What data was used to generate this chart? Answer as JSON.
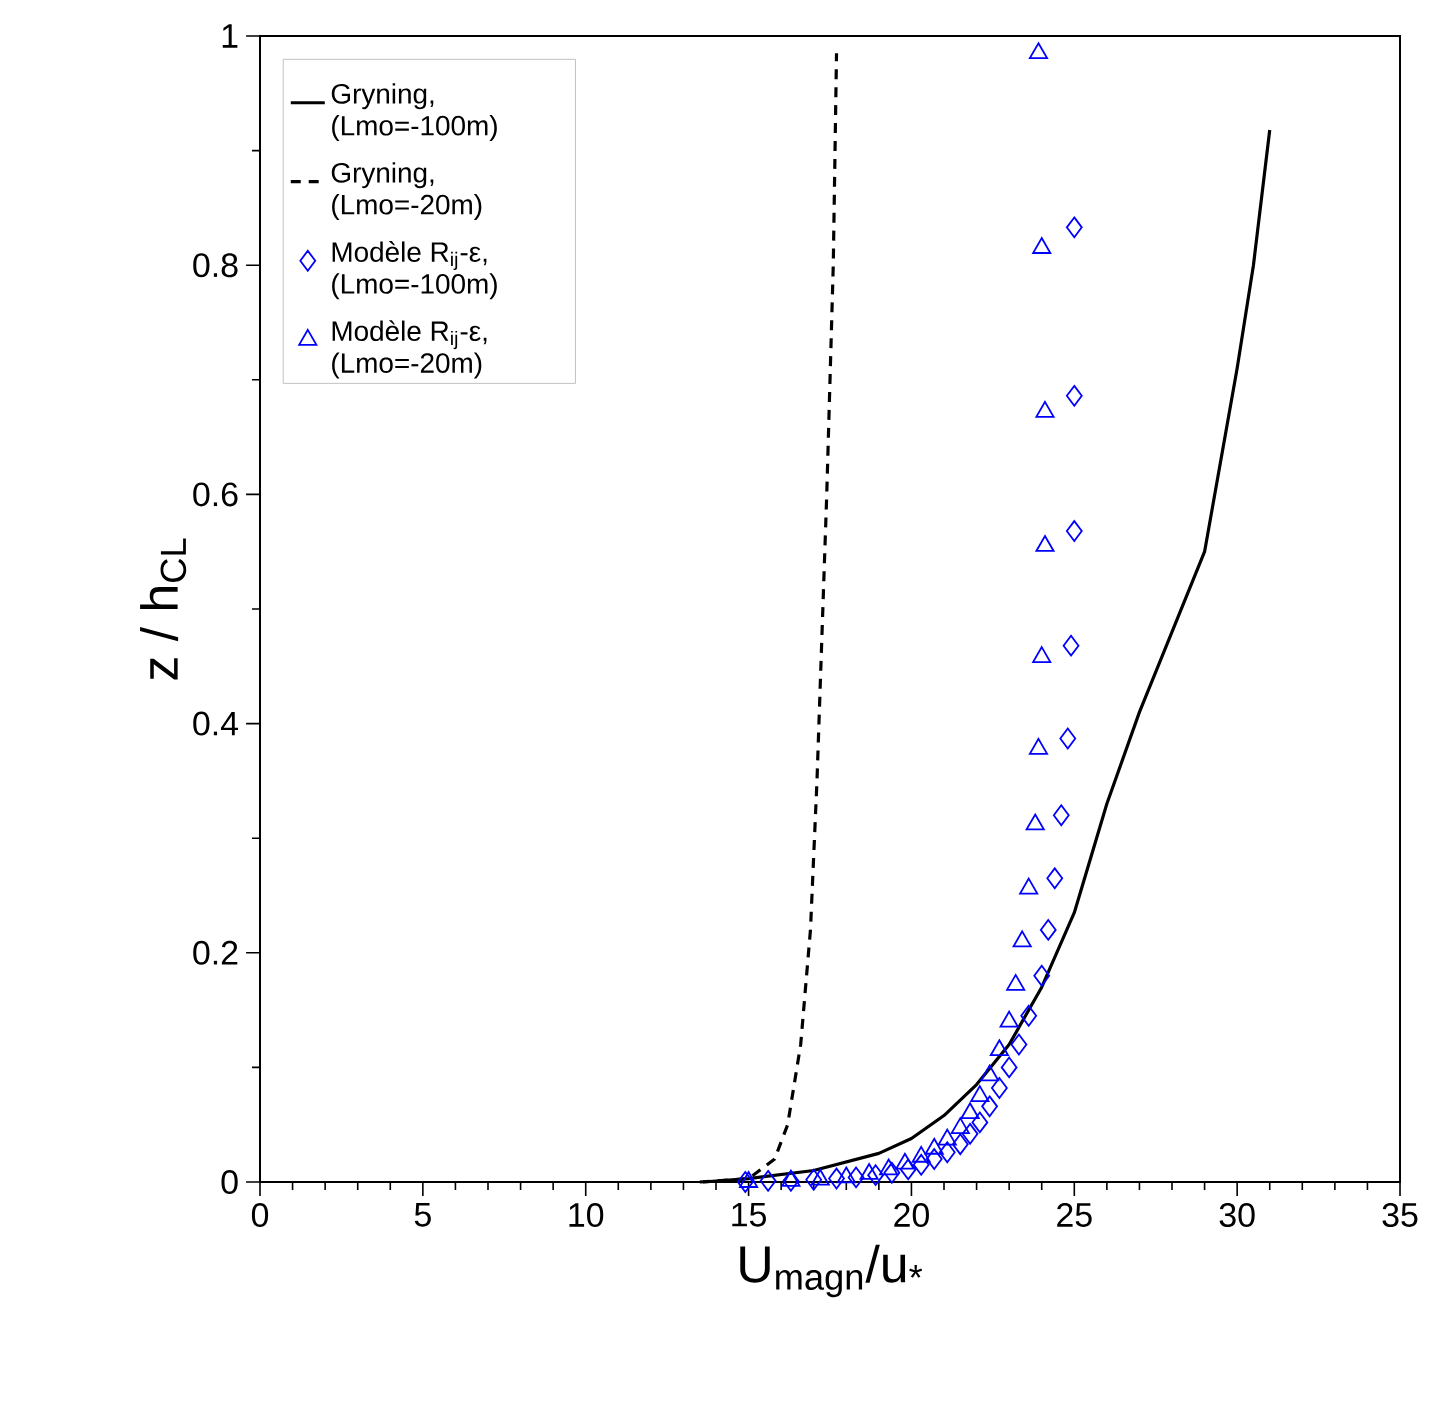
{
  "chart_data": {
    "type": "line",
    "xlabel": "U$_{magn}$/u$_{*}$",
    "ylabel": "z / h$_{CL}$",
    "xlim": [
      0,
      35
    ],
    "ylim": [
      0,
      1
    ],
    "xticks": [
      0,
      5,
      10,
      15,
      20,
      25,
      30,
      35
    ],
    "yticks": [
      0,
      0.2,
      0.4,
      0.6,
      0.8,
      1
    ],
    "grid": false,
    "legend": "top left",
    "series": [
      {
        "name": "Gryning, (Lmo=-100m)",
        "type": "line",
        "color": "#000000",
        "line_style": "solid",
        "marker": "none",
        "x": [
          13.6,
          15,
          17,
          19,
          20,
          21,
          22,
          23,
          24,
          25,
          26,
          27,
          28,
          29,
          30,
          30.5,
          31
        ],
        "values": [
          0,
          0.003,
          0.01,
          0.025,
          0.038,
          0.058,
          0.085,
          0.12,
          0.17,
          0.235,
          0.33,
          0.41,
          0.48,
          0.55,
          0.71,
          0.8,
          0.918
        ]
      },
      {
        "name": "Gryning, (Lmo=-20m)",
        "type": "line",
        "color": "#000000",
        "line_style": "dashed",
        "marker": "none",
        "x": [
          13.5,
          15,
          15.8,
          16.2,
          16.6,
          16.9,
          17.1,
          17.4,
          17.6,
          17.7
        ],
        "values": [
          0,
          0.003,
          0.02,
          0.05,
          0.12,
          0.22,
          0.35,
          0.6,
          0.8,
          0.985
        ]
      },
      {
        "name": "Modèle R$_{ij}$-ε, (Lmo=-100m)",
        "type": "scatter",
        "color": "#0000ff",
        "marker": "diamond",
        "x": [
          25.0,
          25.0,
          25.0,
          24.9,
          24.8,
          24.6,
          24.4,
          24.2,
          24.0,
          23.6,
          23.3,
          23.0,
          22.7,
          22.4,
          22.1,
          21.8,
          21.5,
          21.1,
          20.7,
          20.3,
          19.9,
          19.4,
          18.9,
          18.3,
          17.7,
          17.0,
          16.3,
          15.6,
          14.9
        ],
        "values": [
          0.833,
          0.686,
          0.568,
          0.468,
          0.387,
          0.32,
          0.265,
          0.22,
          0.18,
          0.145,
          0.12,
          0.1,
          0.082,
          0.066,
          0.052,
          0.042,
          0.033,
          0.026,
          0.02,
          0.015,
          0.011,
          0.008,
          0.006,
          0.004,
          0.003,
          0.002,
          0.001,
          0.001,
          0
        ]
      },
      {
        "name": "Modèle R$_{ij}$-ε, (Lmo=-20m)",
        "type": "scatter",
        "color": "#0000ff",
        "marker": "triangle",
        "x": [
          23.9,
          24.0,
          24.1,
          24.1,
          24.0,
          23.9,
          23.8,
          23.6,
          23.4,
          23.2,
          23.0,
          22.7,
          22.4,
          22.1,
          21.8,
          21.5,
          21.1,
          20.7,
          20.3,
          19.8,
          19.3,
          18.7,
          18.0,
          17.2,
          16.3,
          15.0
        ],
        "values": [
          0.985,
          0.815,
          0.672,
          0.555,
          0.458,
          0.378,
          0.312,
          0.256,
          0.21,
          0.172,
          0.14,
          0.115,
          0.093,
          0.075,
          0.06,
          0.047,
          0.037,
          0.029,
          0.022,
          0.016,
          0.011,
          0.007,
          0.004,
          0.002,
          0.001,
          0
        ]
      }
    ]
  }
}
